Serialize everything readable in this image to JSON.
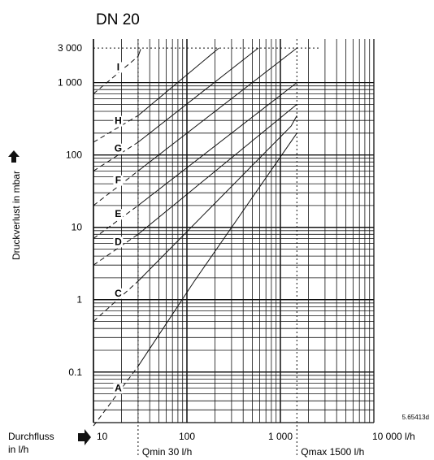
{
  "chart_data": {
    "type": "line",
    "title": "DN 20",
    "ylabel": "Druckverlust in mbar",
    "xlabel_lines": [
      "Durchfluss",
      "in l/h"
    ],
    "x_scale": "log",
    "y_scale": "log",
    "xlim": [
      10,
      10000
    ],
    "ylim": [
      0.02,
      4000
    ],
    "x_ticks": [
      {
        "value": 10,
        "label": "10"
      },
      {
        "value": 100,
        "label": "100"
      },
      {
        "value": 1000,
        "label": "1 000"
      },
      {
        "value": 10000,
        "label": "10 000 l/h"
      }
    ],
    "y_ticks": [
      {
        "value": 3000,
        "label": "3 000"
      },
      {
        "value": 1000,
        "label": "1 000"
      },
      {
        "value": 100,
        "label": "100"
      },
      {
        "value": 10,
        "label": "10"
      },
      {
        "value": 1,
        "label": "1"
      },
      {
        "value": 0.1,
        "label": "0.1"
      }
    ],
    "qmin": {
      "value": 30,
      "label": "Qmin 30 l/h"
    },
    "qmax": {
      "value": 1500,
      "label": "Qmax 1500 l/h"
    },
    "reference_line": {
      "value": 3000
    },
    "code": "5.65413d",
    "grid": true,
    "series": [
      {
        "name": "A",
        "points": [
          [
            10,
            0.018
          ],
          [
            30,
            0.12
          ],
          [
            120,
            1.8
          ],
          [
            1500,
            200
          ]
        ]
      },
      {
        "name": "C",
        "points": [
          [
            10,
            0.5
          ],
          [
            30,
            1.8
          ],
          [
            1300,
            250
          ],
          [
            1500,
            350
          ]
        ]
      },
      {
        "name": "D",
        "points": [
          [
            10,
            3.0
          ],
          [
            30,
            8.0
          ],
          [
            1500,
            500
          ]
        ]
      },
      {
        "name": "E",
        "points": [
          [
            10,
            7.0
          ],
          [
            30,
            20
          ],
          [
            1500,
            1000
          ]
        ]
      },
      {
        "name": "F",
        "points": [
          [
            10,
            20
          ],
          [
            30,
            60
          ],
          [
            1500,
            3000
          ]
        ]
      },
      {
        "name": "G",
        "points": [
          [
            10,
            60
          ],
          [
            30,
            150
          ],
          [
            580,
            3000
          ]
        ]
      },
      {
        "name": "H",
        "points": [
          [
            10,
            150
          ],
          [
            30,
            350
          ],
          [
            220,
            3000
          ]
        ]
      },
      {
        "name": "I",
        "points": [
          [
            10,
            700
          ],
          [
            30,
            2300
          ],
          [
            32,
            2900
          ]
        ]
      }
    ]
  }
}
